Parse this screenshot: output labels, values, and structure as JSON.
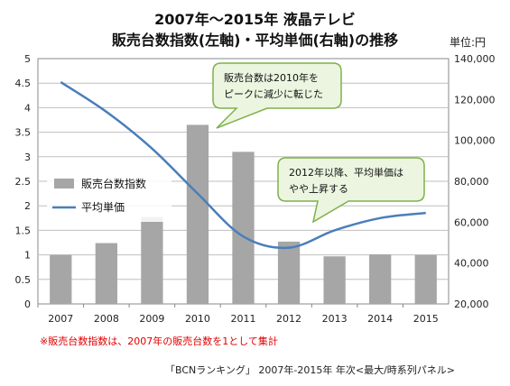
{
  "page": {
    "title_line1": "2007年～2015年 液晶テレビ",
    "title_line2": "販売台数指数(左軸)・平均単価(右軸)の推移",
    "unit_label": "単位:円",
    "note": "※販売台数指数は、2007年の販売台数を1として集計",
    "source": "「BCNランキング」 2007年-2015年 年次<最大/時系列パネル>"
  },
  "colors": {
    "bar": "#a6a6a6",
    "line": "#4a7ebb",
    "callout_fill": "#ebf5e0",
    "callout_stroke": "#7fb04a",
    "grid": "#bfbfbf"
  },
  "chart_data": {
    "type": "bar",
    "categories": [
      "2007",
      "2008",
      "2009",
      "2010",
      "2011",
      "2012",
      "2013",
      "2014",
      "2015"
    ],
    "series": [
      {
        "name": "販売台数指数",
        "type": "bar",
        "axis": "left",
        "values": [
          1.0,
          1.24,
          1.77,
          3.65,
          3.1,
          1.27,
          0.97,
          1.01,
          1.0
        ]
      },
      {
        "name": "平均単価",
        "type": "line",
        "axis": "right",
        "values": [
          128500,
          114000,
          96000,
          74000,
          53000,
          47500,
          56000,
          62000,
          64500
        ]
      }
    ],
    "left_axis": {
      "ylim": [
        0,
        5
      ],
      "ticks": [
        "0",
        "0.5",
        "1",
        "1.5",
        "2",
        "2.5",
        "3",
        "3.5",
        "4",
        "4.5",
        "5"
      ]
    },
    "right_axis": {
      "ylim": [
        20000,
        140000
      ],
      "ticks": [
        "20,000",
        "40,000",
        "60,000",
        "80,000",
        "100,000",
        "120,000",
        "140,000"
      ]
    },
    "grid": true,
    "legend": "left",
    "annotations": [
      {
        "lines": [
          "販売台数は2010年を",
          "ピークに減少に転じた"
        ]
      },
      {
        "lines": [
          "2012年以降、平均単価は",
          "やや上昇する"
        ]
      }
    ]
  }
}
